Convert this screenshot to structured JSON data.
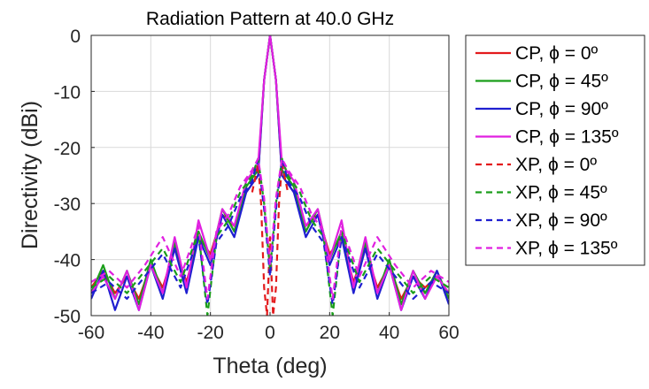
{
  "chart_data": {
    "type": "line",
    "title": "Radiation Pattern at 40.0 GHz",
    "xlabel": "Theta (deg)",
    "ylabel": "Directivity (dBi)",
    "xlim": [
      -60,
      60
    ],
    "ylim": [
      -50,
      0
    ],
    "xticks": [
      -60,
      -40,
      -20,
      0,
      20,
      40,
      60
    ],
    "yticks": [
      0,
      -10,
      -20,
      -30,
      -40,
      -50
    ],
    "grid": true,
    "legend_position": "outside-right",
    "series": [
      {
        "name": "CP, ϕ = 0º",
        "color": "#e31a1c",
        "style": "solid",
        "x": [
          -60,
          -56,
          -52,
          -48,
          -44,
          -40,
          -36,
          -32,
          -28,
          -24,
          -20,
          -16,
          -12,
          -8,
          -4,
          -2,
          0,
          2,
          4,
          8,
          12,
          16,
          20,
          24,
          28,
          32,
          36,
          40,
          44,
          48,
          52,
          56,
          60
        ],
        "y": [
          -45,
          -42,
          -46,
          -43,
          -47,
          -41,
          -45,
          -38,
          -44,
          -36,
          -39,
          -32,
          -34,
          -28,
          -25,
          -8,
          0,
          -8,
          -25,
          -28,
          -34,
          -32,
          -39,
          -36,
          -44,
          -38,
          -45,
          -41,
          -47,
          -43,
          -45,
          -43,
          -46
        ]
      },
      {
        "name": "CP, ϕ = 45º",
        "color": "#1a9e1a",
        "style": "solid",
        "x": [
          -60,
          -56,
          -52,
          -48,
          -44,
          -40,
          -36,
          -32,
          -28,
          -24,
          -20,
          -16,
          -12,
          -8,
          -4,
          -2,
          0,
          2,
          4,
          8,
          12,
          16,
          20,
          24,
          28,
          32,
          36,
          40,
          44,
          48,
          52,
          56,
          60
        ],
        "y": [
          -46,
          -41,
          -47,
          -42,
          -48,
          -40,
          -46,
          -37,
          -45,
          -35,
          -40,
          -31,
          -35,
          -27,
          -24,
          -8,
          0,
          -8,
          -24,
          -27,
          -35,
          -31,
          -40,
          -35,
          -45,
          -37,
          -46,
          -40,
          -48,
          -42,
          -46,
          -42,
          -47
        ]
      },
      {
        "name": "CP, ϕ = 90º",
        "color": "#1f1fd0",
        "style": "solid",
        "x": [
          -60,
          -56,
          -52,
          -48,
          -44,
          -40,
          -36,
          -32,
          -28,
          -24,
          -20,
          -16,
          -12,
          -8,
          -4,
          -2,
          0,
          2,
          4,
          8,
          12,
          16,
          20,
          24,
          28,
          32,
          36,
          40,
          44,
          48,
          52,
          56,
          60
        ],
        "y": [
          -47,
          -42,
          -49,
          -43,
          -49,
          -41,
          -47,
          -38,
          -46,
          -36,
          -41,
          -32,
          -36,
          -28,
          -25,
          -8,
          0,
          -8,
          -25,
          -28,
          -36,
          -32,
          -41,
          -36,
          -46,
          -38,
          -47,
          -41,
          -49,
          -43,
          -47,
          -42,
          -48
        ]
      },
      {
        "name": "CP, ϕ = 135º",
        "color": "#e020e0",
        "style": "solid",
        "x": [
          -60,
          -56,
          -52,
          -48,
          -44,
          -40,
          -36,
          -32,
          -28,
          -24,
          -20,
          -16,
          -12,
          -8,
          -4,
          -2,
          0,
          2,
          4,
          8,
          12,
          16,
          20,
          24,
          28,
          32,
          36,
          40,
          44,
          48,
          52,
          56,
          60
        ],
        "y": [
          -46,
          -43,
          -47,
          -42,
          -49,
          -41,
          -46,
          -36,
          -45,
          -33,
          -40,
          -31,
          -34,
          -26,
          -23,
          -8,
          0,
          -8,
          -23,
          -26,
          -34,
          -31,
          -40,
          -33,
          -45,
          -36,
          -46,
          -41,
          -49,
          -42,
          -47,
          -43,
          -46
        ]
      },
      {
        "name": "XP, ϕ = 0º",
        "color": "#e31a1c",
        "style": "dashed",
        "x": [
          -6,
          -4,
          -3,
          -2,
          -1,
          0,
          1,
          2,
          3,
          4,
          6
        ],
        "y": [
          -28,
          -23,
          -30,
          -45,
          -50,
          -36,
          -50,
          -45,
          -30,
          -23,
          -28
        ]
      },
      {
        "name": "XP, ϕ = 45º",
        "color": "#1a9e1a",
        "style": "dashed",
        "x": [
          -60,
          -54,
          -48,
          -42,
          -36,
          -30,
          -24,
          -21,
          -18,
          -14,
          -10,
          -6,
          -4,
          -2,
          0,
          2,
          4,
          6,
          10,
          14,
          18,
          21,
          24,
          30,
          36,
          42,
          48,
          54,
          60
        ],
        "y": [
          -45,
          -43,
          -46,
          -42,
          -38,
          -44,
          -35,
          -50,
          -36,
          -33,
          -28,
          -25,
          -22,
          -30,
          -42,
          -30,
          -22,
          -25,
          -28,
          -33,
          -36,
          -50,
          -35,
          -44,
          -38,
          -42,
          -46,
          -43,
          -45
        ]
      },
      {
        "name": "XP, ϕ = 90º",
        "color": "#1f1fd0",
        "style": "dashed",
        "x": [
          -60,
          -54,
          -48,
          -42,
          -36,
          -30,
          -24,
          -21,
          -18,
          -14,
          -10,
          -6,
          -4,
          -2,
          0,
          2,
          4,
          6,
          10,
          14,
          18,
          21,
          24,
          30,
          36,
          42,
          48,
          54,
          60
        ],
        "y": [
          -46,
          -44,
          -47,
          -43,
          -39,
          -45,
          -36,
          -48,
          -37,
          -34,
          -29,
          -26,
          -22,
          -31,
          -43,
          -31,
          -22,
          -26,
          -29,
          -34,
          -37,
          -48,
          -36,
          -45,
          -39,
          -43,
          -47,
          -44,
          -46
        ]
      },
      {
        "name": "XP, ϕ = 135º",
        "color": "#e020e0",
        "style": "dashed",
        "x": [
          -60,
          -54,
          -48,
          -42,
          -36,
          -30,
          -24,
          -21,
          -18,
          -14,
          -10,
          -6,
          -4,
          -2,
          0,
          2,
          4,
          6,
          10,
          14,
          18,
          21,
          24,
          30,
          36,
          42,
          48,
          54,
          60
        ],
        "y": [
          -44,
          -42,
          -45,
          -41,
          -36,
          -43,
          -34,
          -47,
          -35,
          -32,
          -27,
          -24,
          -22,
          -29,
          -41,
          -29,
          -22,
          -24,
          -27,
          -32,
          -35,
          -47,
          -34,
          -43,
          -36,
          -41,
          -45,
          -42,
          -44
        ]
      }
    ]
  }
}
